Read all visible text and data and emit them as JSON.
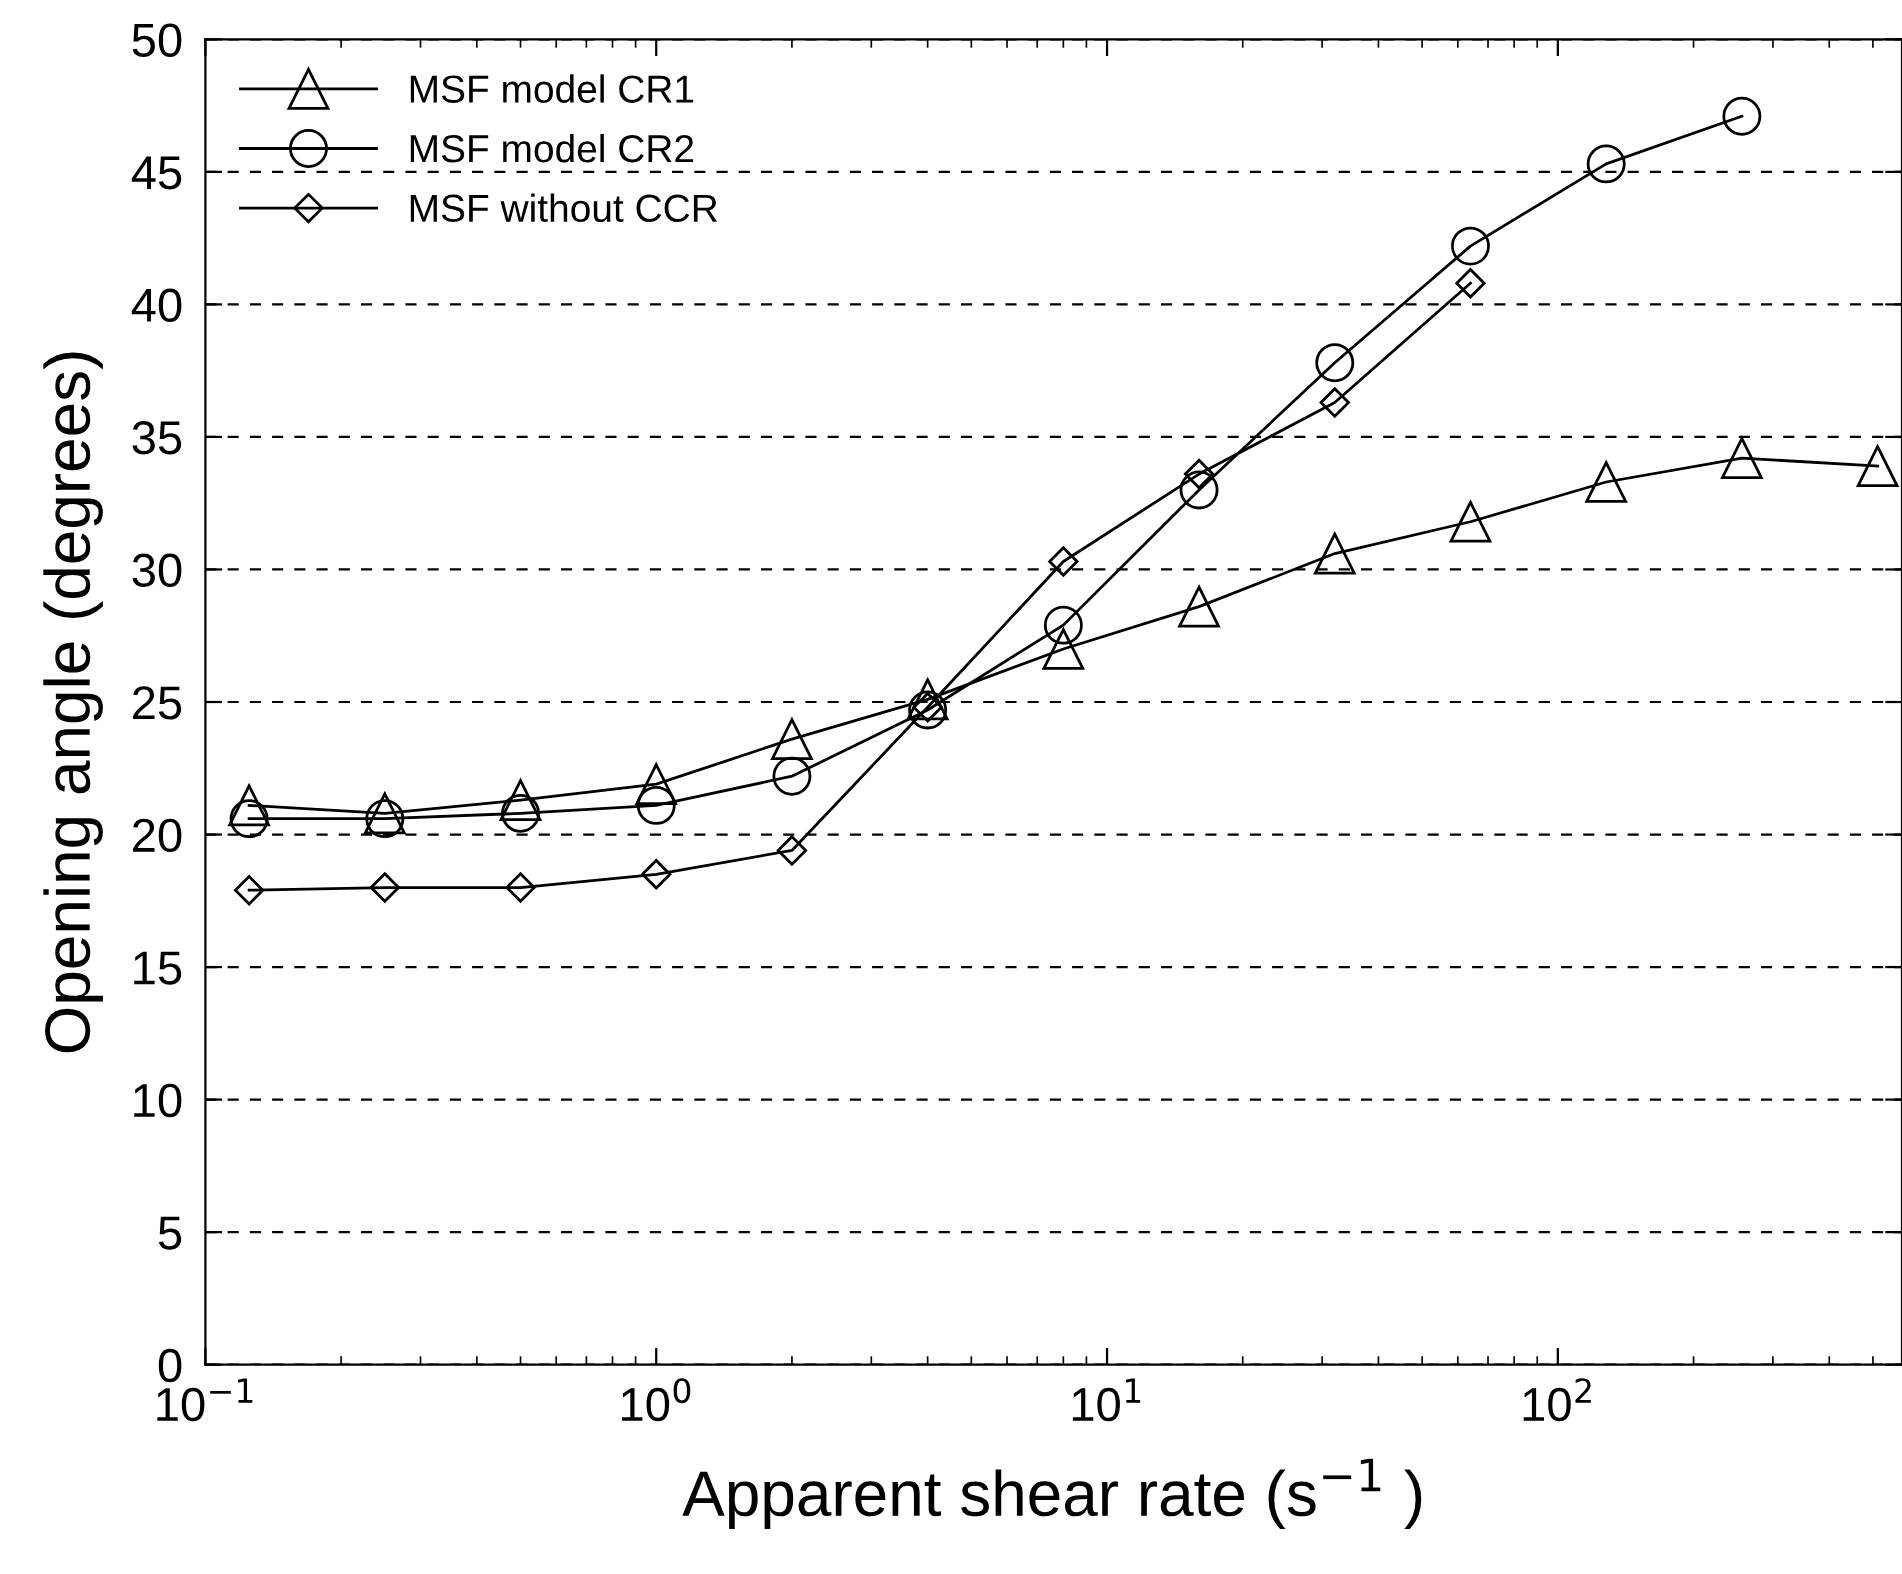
{
  "chart_data": {
    "type": "line",
    "xlabel": "Apparent shear rate (s$^{−1}$ )",
    "ylabel": "Opening angle (degrees)",
    "log": "x",
    "grid": "y",
    "legend": "top left",
    "line_style": "solid",
    "xlim": [
      0.1,
      580
    ],
    "xticks": [
      {
        "value": 0.1,
        "label": "10$^{−1}$"
      },
      {
        "value": 1,
        "label": "10$^{0}$"
      },
      {
        "value": 10,
        "label": "10$^{1}$"
      },
      {
        "value": 100,
        "label": "10$^{2}$"
      }
    ],
    "ylim": [
      0,
      50
    ],
    "yticks": [
      0,
      5,
      10,
      15,
      20,
      25,
      30,
      35,
      40,
      45,
      50
    ],
    "series": [
      {
        "name": "MSF model CR1",
        "color": "#000000",
        "marker": "triangle",
        "x": [
          0.125,
          0.25,
          0.5,
          1,
          2,
          4,
          8,
          16,
          32,
          64,
          128,
          256,
          512
        ],
        "values": [
          21.1,
          20.8,
          21.3,
          21.9,
          23.6,
          25.1,
          27.0,
          28.6,
          30.6,
          31.8,
          33.3,
          34.2,
          33.9
        ]
      },
      {
        "name": "MSF model CR2",
        "color": "#000000",
        "marker": "circle",
        "x": [
          0.125,
          0.25,
          0.5,
          1,
          2,
          4,
          8,
          16,
          32,
          64,
          128,
          256
        ],
        "values": [
          20.6,
          20.6,
          20.8,
          21.1,
          22.2,
          24.7,
          27.9,
          33.0,
          37.8,
          42.2,
          45.3,
          47.1
        ]
      },
      {
        "name": "MSF without CCR",
        "color": "#000000",
        "marker": "diamond",
        "x": [
          0.125,
          0.25,
          0.5,
          1,
          2,
          4,
          8,
          16,
          32,
          64
        ],
        "values": [
          17.9,
          18.0,
          18.0,
          18.5,
          19.4,
          24.8,
          30.3,
          33.6,
          36.3,
          40.8
        ]
      }
    ]
  }
}
